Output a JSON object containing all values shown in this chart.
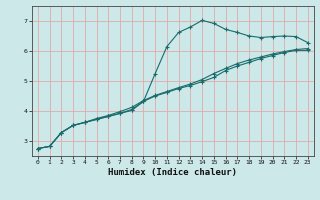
{
  "xlabel": "Humidex (Indice chaleur)",
  "bg_color": "#cce8e8",
  "grid_color": "#e0aaaa",
  "line_color": "#1a6b6b",
  "xlim": [
    -0.5,
    23.5
  ],
  "ylim": [
    2.5,
    7.5
  ],
  "xticks": [
    0,
    1,
    2,
    3,
    4,
    5,
    6,
    7,
    8,
    9,
    10,
    11,
    12,
    13,
    14,
    15,
    16,
    17,
    18,
    19,
    20,
    21,
    22,
    23
  ],
  "yticks": [
    3,
    4,
    5,
    6,
    7
  ],
  "line1_y": [
    2.75,
    2.82,
    3.28,
    3.52,
    3.62,
    3.72,
    3.82,
    3.92,
    4.02,
    4.32,
    5.25,
    6.15,
    6.62,
    6.8,
    7.02,
    6.92,
    6.72,
    6.62,
    6.5,
    6.45,
    6.48,
    6.5,
    6.48,
    6.28
  ],
  "line2_y": [
    2.75,
    2.82,
    3.28,
    3.52,
    3.62,
    3.72,
    3.82,
    3.92,
    4.05,
    4.32,
    4.5,
    4.62,
    4.75,
    4.85,
    4.98,
    5.12,
    5.35,
    5.5,
    5.62,
    5.75,
    5.85,
    5.95,
    6.02,
    6.02
  ],
  "line3_y": [
    2.75,
    2.82,
    3.28,
    3.52,
    3.62,
    3.75,
    3.85,
    3.98,
    4.12,
    4.35,
    4.52,
    4.65,
    4.78,
    4.9,
    5.05,
    5.25,
    5.42,
    5.58,
    5.7,
    5.8,
    5.9,
    5.98,
    6.05,
    6.08
  ]
}
